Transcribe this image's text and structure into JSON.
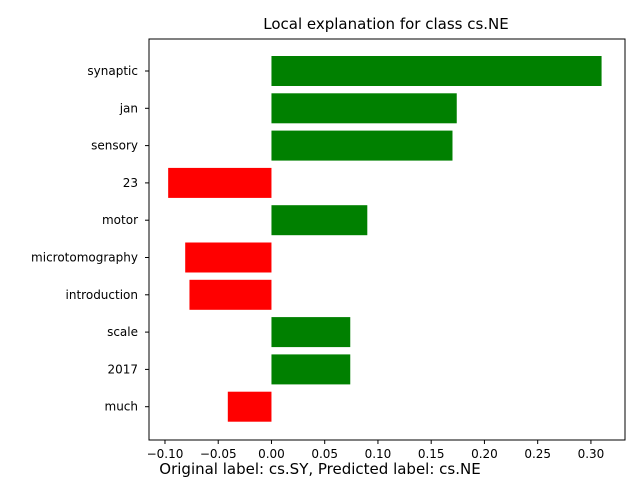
{
  "chart_data": {
    "type": "bar",
    "orientation": "horizontal",
    "title": "Local explanation for class cs.NE",
    "caption": "Original label: cs.SY, Predicted label: cs.NE",
    "categories": [
      "synaptic",
      "jan",
      "sensory",
      "23",
      "motor",
      "microtomography",
      "introduction",
      "scale",
      "2017",
      "much"
    ],
    "values": [
      0.31,
      0.174,
      0.17,
      -0.097,
      0.09,
      -0.081,
      -0.077,
      0.074,
      0.074,
      -0.041
    ],
    "xlim": [
      -0.115,
      0.332
    ],
    "xticks": [
      -0.1,
      -0.05,
      0.0,
      0.05,
      0.1,
      0.15,
      0.2,
      0.25,
      0.3
    ],
    "xtick_labels": [
      "−0.10",
      "−0.05",
      "0.00",
      "0.05",
      "0.10",
      "0.15",
      "0.20",
      "0.25",
      "0.30"
    ],
    "grid": false,
    "colors": {
      "positive": "#008000",
      "negative": "#ff0000"
    }
  }
}
